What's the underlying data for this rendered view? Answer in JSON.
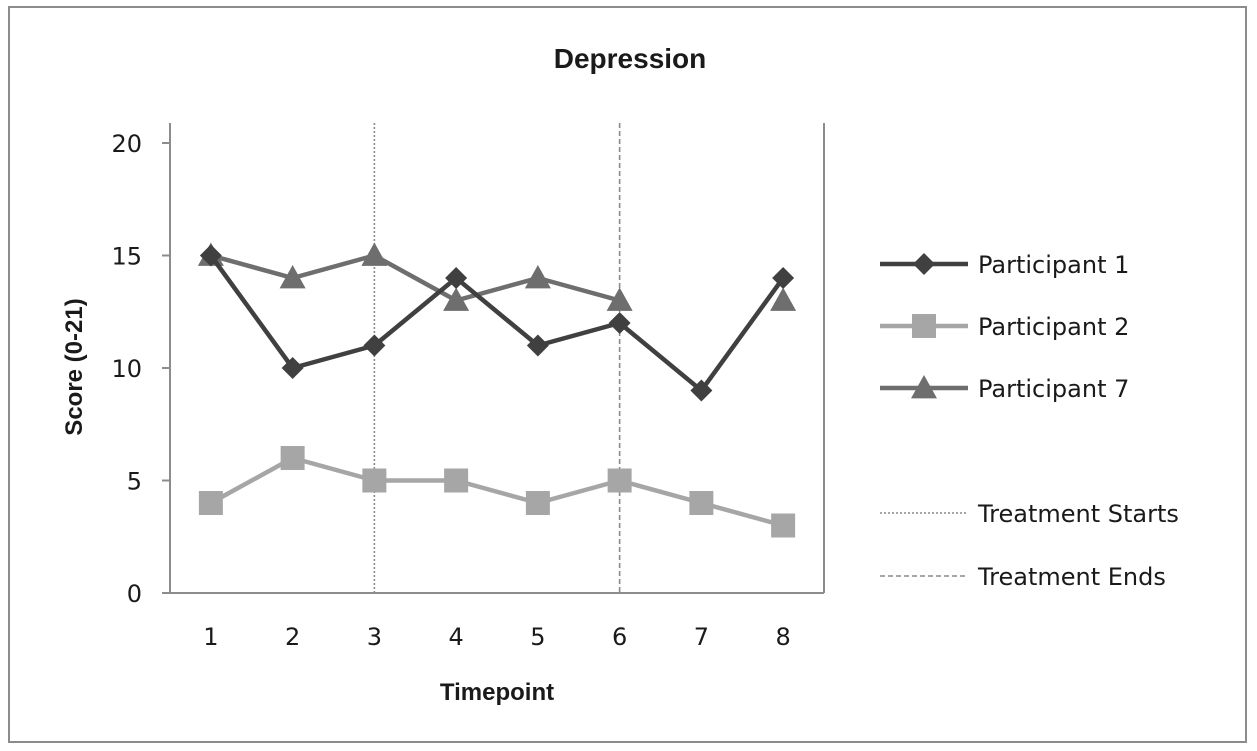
{
  "chart_data": {
    "type": "line",
    "title": "Depression",
    "xlabel": "Timepoint",
    "ylabel": "Score (0-21)",
    "x": [
      1,
      2,
      3,
      4,
      5,
      6,
      7,
      8
    ],
    "xticks": [
      "1",
      "2",
      "3",
      "4",
      "5",
      "6",
      "7",
      "8"
    ],
    "ylim": [
      0,
      20
    ],
    "yticks": [
      0,
      5,
      10,
      15,
      20
    ],
    "grid": false,
    "legend_position": "right",
    "series": [
      {
        "name": "Participant 1",
        "marker": "diamond",
        "color": "#404040",
        "values": [
          15,
          10,
          11,
          14,
          11,
          12,
          9,
          14
        ]
      },
      {
        "name": "Participant 2",
        "marker": "square",
        "color": "#a6a6a6",
        "values": [
          4,
          6,
          5,
          5,
          4,
          5,
          4,
          3
        ]
      },
      {
        "name": "Participant 7",
        "marker": "triangle",
        "color": "#6e6e6e",
        "values": [
          15,
          14,
          15,
          13,
          14,
          13,
          null,
          13
        ]
      }
    ],
    "reference_lines": [
      {
        "name": "Treatment Starts",
        "x": 3,
        "style": "dotted",
        "color": "#8a8a8a"
      },
      {
        "name": "Treatment Ends",
        "x": 6,
        "style": "dashed",
        "color": "#8a8a8a"
      }
    ]
  }
}
